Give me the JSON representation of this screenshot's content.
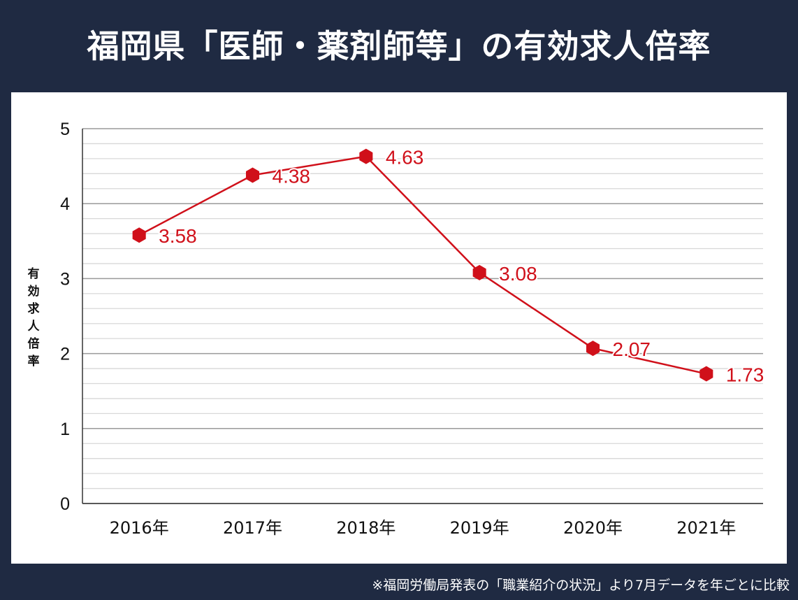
{
  "title": "福岡県「医師・薬剤師等」の有効求人倍率",
  "note": "※福岡労働局発表の「職業紹介の状況」より7月データを年ごとに比較",
  "chart_data": {
    "type": "line",
    "categories": [
      "2016年",
      "2017年",
      "2018年",
      "2019年",
      "2020年",
      "2021年"
    ],
    "series": [
      {
        "values": [
          3.58,
          4.38,
          4.63,
          3.08,
          2.07,
          1.73
        ]
      }
    ],
    "data_labels": [
      "3.58",
      "4.38",
      "4.63",
      "3.08",
      "2.07",
      "1.73"
    ],
    "ylabel": "有効求人倍率",
    "ylim": [
      0,
      5
    ],
    "yticks": [
      "0",
      "1",
      "2",
      "3",
      "4",
      "5"
    ],
    "minor_grid_step": 0.2,
    "grid": true,
    "line_color": "#d0101a",
    "marker": "hexagon"
  }
}
